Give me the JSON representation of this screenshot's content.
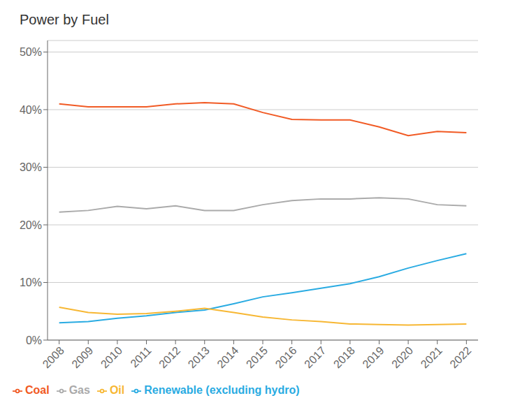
{
  "chart_data": {
    "type": "line",
    "title": "Power by Fuel",
    "x": [
      2008,
      2009,
      2010,
      2011,
      2012,
      2013,
      2014,
      2015,
      2016,
      2017,
      2018,
      2019,
      2020,
      2021,
      2022
    ],
    "xlim": [
      2007.6,
      2022.4
    ],
    "xticks": [
      2008,
      2009,
      2010,
      2011,
      2012,
      2013,
      2014,
      2015,
      2016,
      2017,
      2018,
      2019,
      2020,
      2021,
      2022
    ],
    "ylim": [
      0,
      52
    ],
    "yticks": [
      {
        "value": 0,
        "label": "0%"
      },
      {
        "value": 10,
        "label": "10%"
      },
      {
        "value": 20,
        "label": "20%"
      },
      {
        "value": 30,
        "label": "30%"
      },
      {
        "value": 40,
        "label": "40%"
      },
      {
        "value": 50,
        "label": "50%"
      }
    ],
    "grid": true,
    "legend": "bottom",
    "series": [
      {
        "name": "Renewable (excluding hydro)",
        "color": "#29ABE2",
        "values": [
          3.0,
          3.2,
          3.8,
          4.2,
          4.8,
          5.2,
          6.3,
          7.5,
          8.2,
          9.0,
          9.8,
          11.0,
          12.5,
          13.8,
          15.0
        ]
      },
      {
        "name": "Coal",
        "color": "#F15A24",
        "values": [
          41.0,
          40.5,
          40.5,
          40.5,
          41.0,
          41.2,
          41.0,
          39.5,
          38.3,
          38.2,
          38.2,
          37.0,
          35.5,
          36.2,
          36.0
        ]
      },
      {
        "name": "Gas",
        "color": "#AAAAAA",
        "values": [
          22.2,
          22.5,
          23.2,
          22.8,
          23.3,
          22.5,
          22.5,
          23.5,
          24.2,
          24.5,
          24.5,
          24.7,
          24.5,
          23.5,
          23.3
        ]
      },
      {
        "name": "Oil",
        "color": "#F7B733",
        "values": [
          5.7,
          4.8,
          4.5,
          4.6,
          5.0,
          5.5,
          4.8,
          4.0,
          3.5,
          3.2,
          2.8,
          2.7,
          2.6,
          2.7,
          2.8
        ]
      }
    ]
  }
}
